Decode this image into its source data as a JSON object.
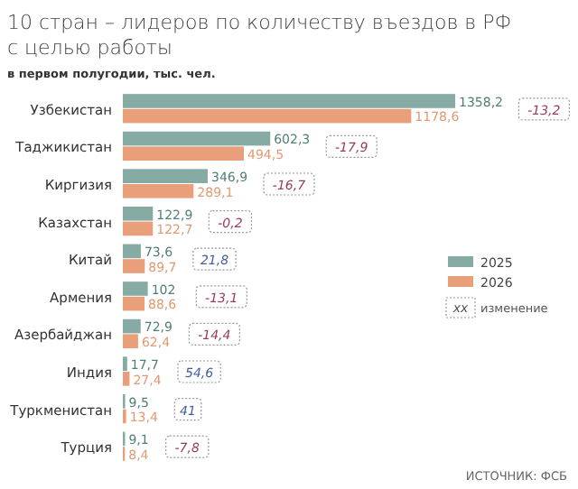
{
  "chart_data": {
    "type": "bar",
    "orientation": "horizontal",
    "title": "10 стран – лидеров по количеству въездов в РФ с целью работы",
    "subtitle": "в первом полугодии, тыс. чел.",
    "categories": [
      "Узбекистан",
      "Таджикистан",
      "Киргизия",
      "Казахстан",
      "Китай",
      "Армения",
      "Азербайджан",
      "Индия",
      "Туркменистан",
      "Турция"
    ],
    "series": [
      {
        "name": "2025",
        "color": "#86aba4",
        "values": [
          1358.2,
          602.3,
          346.9,
          122.9,
          73.6,
          102,
          72.9,
          17.7,
          9.5,
          9.1
        ],
        "value_labels": [
          "1358,2",
          "602,3",
          "346,9",
          "122,9",
          "73,6",
          "102",
          "72,9",
          "17,7",
          "9,5",
          "9,1"
        ]
      },
      {
        "name": "2026",
        "color": "#e9a07a",
        "values": [
          1178.6,
          494.5,
          289.1,
          122.7,
          89.7,
          88.6,
          62.4,
          27.4,
          13.4,
          8.4
        ],
        "value_labels": [
          "1178,6",
          "494,5",
          "289,1",
          "122,7",
          "89,7",
          "88,6",
          "62,4",
          "27,4",
          "13,4",
          "8,4"
        ]
      }
    ],
    "legend": "right",
    "annotations": [
      "-13,2",
      "-17,9",
      "-16,7",
      "-0,2",
      "21,8",
      "-13,1",
      "-14,4",
      "54,6",
      "41",
      "-7,8",
      "xx изменение",
      "ИСТОЧНИК: ФСБ"
    ]
  }
}
